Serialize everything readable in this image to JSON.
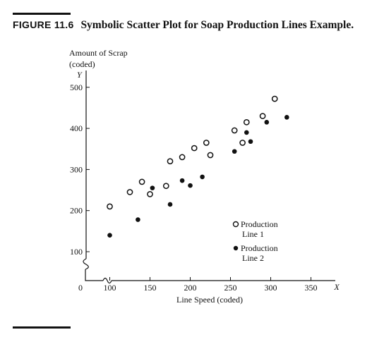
{
  "caption": {
    "figure_label": "FIGURE 11.6",
    "title": "Symbolic Scatter Plot for Soap Production Lines Example."
  },
  "chart_data": {
    "type": "scatter",
    "ylabel_line1": "Amount of Scrap",
    "ylabel_line2": "(coded)",
    "ylabel_var": "Y",
    "xlabel": "Line Speed (coded)",
    "xlabel_var": "X",
    "origin_label": "0",
    "x_ticks": [
      100,
      150,
      200,
      250,
      300,
      350
    ],
    "y_ticks": [
      100,
      200,
      300,
      400,
      500
    ],
    "xlim": [
      100,
      350
    ],
    "ylim": [
      100,
      500
    ],
    "axis_break": true,
    "series": [
      {
        "name_line1": "Production",
        "name_line2": "Line 1",
        "marker": "open-circle",
        "x": [
          100,
          125,
          140,
          150,
          170,
          175,
          190,
          205,
          220,
          225,
          255,
          265,
          270,
          290,
          305
        ],
        "y": [
          210,
          245,
          270,
          240,
          260,
          320,
          330,
          352,
          365,
          335,
          395,
          365,
          415,
          430,
          472
        ]
      },
      {
        "name_line1": "Production",
        "name_line2": "Line 2",
        "marker": "filled-circle",
        "x": [
          100,
          135,
          153,
          175,
          190,
          200,
          215,
          255,
          270,
          275,
          295,
          320
        ],
        "y": [
          140,
          178,
          255,
          215,
          273,
          261,
          282,
          344,
          390,
          368,
          415,
          427
        ]
      }
    ]
  }
}
